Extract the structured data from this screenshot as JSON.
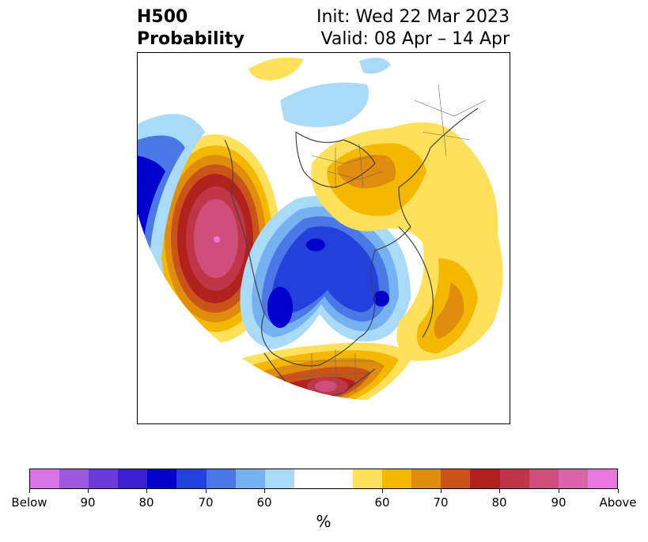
{
  "title": {
    "variable": "H500",
    "product": "Probability",
    "init": "Init: Wed 22 Mar 2023",
    "valid": "Valid: 08 Apr – 14 Apr"
  },
  "map": {
    "projection": "north-polar stereographic",
    "region": "Northern Hemisphere"
  },
  "colorbar": {
    "unit": "%",
    "below_colors": [
      "#d974e6",
      "#9b59e0",
      "#6a3bd9",
      "#3b1fd1",
      "#0000cc",
      "#2340dc",
      "#4a78e6",
      "#76b1f2",
      "#a9daf8"
    ],
    "neutral_color": "#ffffff",
    "above_colors": [
      "#ffe05a",
      "#f5b800",
      "#e08c0c",
      "#c95318",
      "#b0221e",
      "#c03548",
      "#cf4e7c",
      "#d964a8",
      "#e878e0"
    ],
    "tick_labels": [
      "Below",
      "90",
      "80",
      "70",
      "60",
      "60",
      "70",
      "80",
      "90",
      "Above"
    ]
  }
}
